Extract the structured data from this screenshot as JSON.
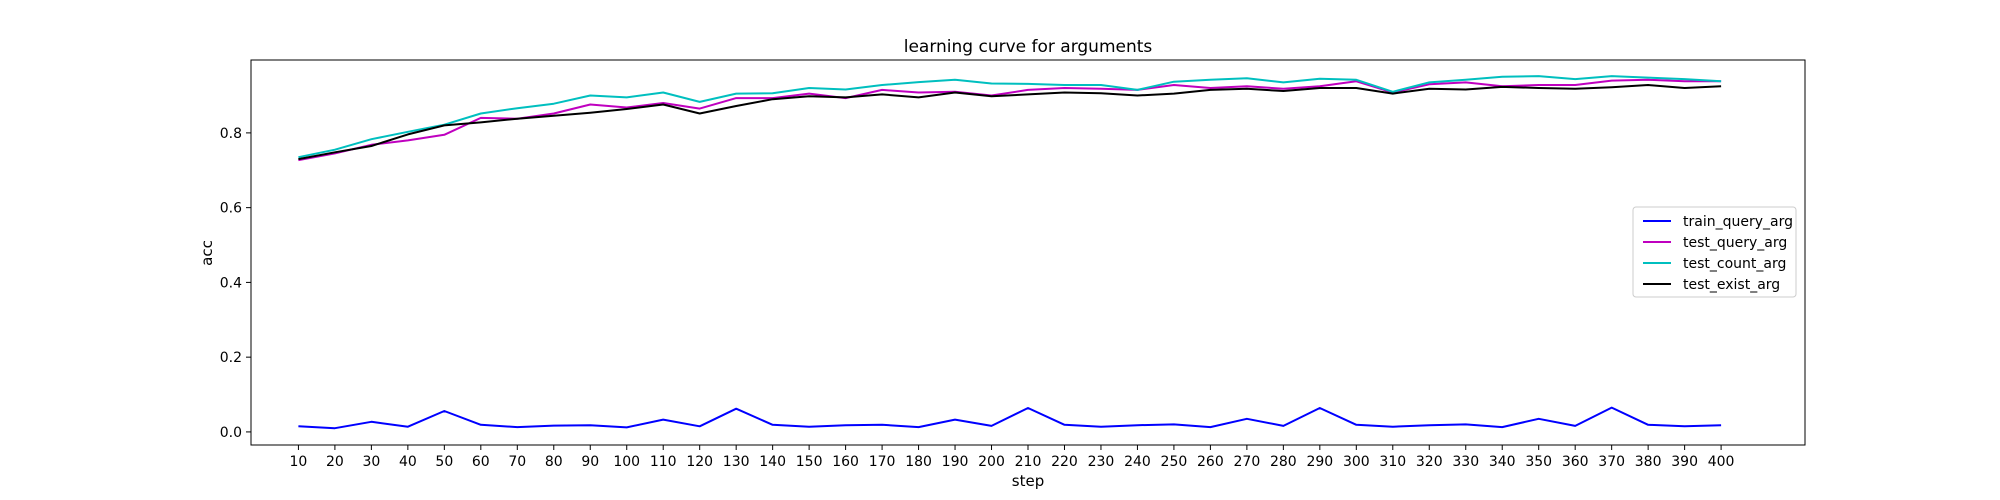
{
  "chart_data": {
    "type": "line",
    "title": "learning curve for arguments",
    "xlabel": "step",
    "ylabel": "acc",
    "grid": false,
    "legend_placement": "center-right",
    "x": [
      10,
      20,
      30,
      40,
      50,
      60,
      70,
      80,
      90,
      100,
      110,
      120,
      130,
      140,
      150,
      160,
      170,
      180,
      190,
      200,
      210,
      220,
      230,
      240,
      250,
      260,
      270,
      280,
      290,
      300,
      310,
      320,
      330,
      340,
      350,
      360,
      370,
      380,
      390,
      400
    ],
    "x_ticks": [
      "10",
      "20",
      "30",
      "40",
      "50",
      "60",
      "70",
      "80",
      "90",
      "100",
      "110",
      "120",
      "130",
      "140",
      "150",
      "160",
      "170",
      "180",
      "190",
      "200",
      "210",
      "220",
      "230",
      "240",
      "250",
      "260",
      "270",
      "280",
      "290",
      "300",
      "310",
      "320",
      "330",
      "340",
      "350",
      "360",
      "370",
      "380",
      "390",
      "400"
    ],
    "y_ticks": [
      "0.0",
      "0.2",
      "0.4",
      "0.6",
      "0.8"
    ],
    "y_tick_values": [
      0.0,
      0.2,
      0.4,
      0.6,
      0.8
    ],
    "xlim": [
      -3,
      423
    ],
    "ylim": [
      -0.035,
      0.995
    ],
    "series": [
      {
        "name": "train_query_arg",
        "color": "#0000ff",
        "values": [
          0.015,
          0.01,
          0.027,
          0.014,
          0.056,
          0.019,
          0.013,
          0.017,
          0.018,
          0.012,
          0.033,
          0.015,
          0.062,
          0.019,
          0.014,
          0.018,
          0.019,
          0.013,
          0.033,
          0.016,
          0.064,
          0.019,
          0.014,
          0.018,
          0.02,
          0.013,
          0.035,
          0.016,
          0.064,
          0.019,
          0.014,
          0.018,
          0.02,
          0.013,
          0.035,
          0.016,
          0.065,
          0.019,
          0.015,
          0.018
        ]
      },
      {
        "name": "test_query_arg",
        "color": "#bf00bf",
        "values": [
          0.727,
          0.745,
          0.768,
          0.78,
          0.795,
          0.84,
          0.838,
          0.852,
          0.876,
          0.868,
          0.88,
          0.865,
          0.893,
          0.893,
          0.905,
          0.893,
          0.915,
          0.908,
          0.91,
          0.9,
          0.915,
          0.92,
          0.918,
          0.915,
          0.928,
          0.92,
          0.925,
          0.918,
          0.925,
          0.938,
          0.908,
          0.93,
          0.935,
          0.925,
          0.928,
          0.928,
          0.94,
          0.942,
          0.938,
          0.938
        ]
      },
      {
        "name": "test_count_arg",
        "color": "#00bfbf",
        "values": [
          0.735,
          0.755,
          0.783,
          0.803,
          0.822,
          0.852,
          0.866,
          0.878,
          0.9,
          0.895,
          0.908,
          0.883,
          0.905,
          0.906,
          0.92,
          0.916,
          0.928,
          0.936,
          0.942,
          0.932,
          0.931,
          0.928,
          0.928,
          0.915,
          0.937,
          0.942,
          0.946,
          0.935,
          0.945,
          0.942,
          0.91,
          0.935,
          0.942,
          0.95,
          0.952,
          0.944,
          0.952,
          0.948,
          0.944,
          0.938
        ]
      },
      {
        "name": "test_exist_arg",
        "color": "#000000",
        "values": [
          0.73,
          0.748,
          0.765,
          0.796,
          0.82,
          0.828,
          0.838,
          0.846,
          0.854,
          0.864,
          0.876,
          0.852,
          0.872,
          0.89,
          0.898,
          0.895,
          0.903,
          0.895,
          0.908,
          0.898,
          0.903,
          0.908,
          0.906,
          0.9,
          0.905,
          0.915,
          0.918,
          0.912,
          0.92,
          0.92,
          0.905,
          0.918,
          0.916,
          0.923,
          0.92,
          0.918,
          0.922,
          0.928,
          0.92,
          0.925
        ]
      }
    ]
  }
}
